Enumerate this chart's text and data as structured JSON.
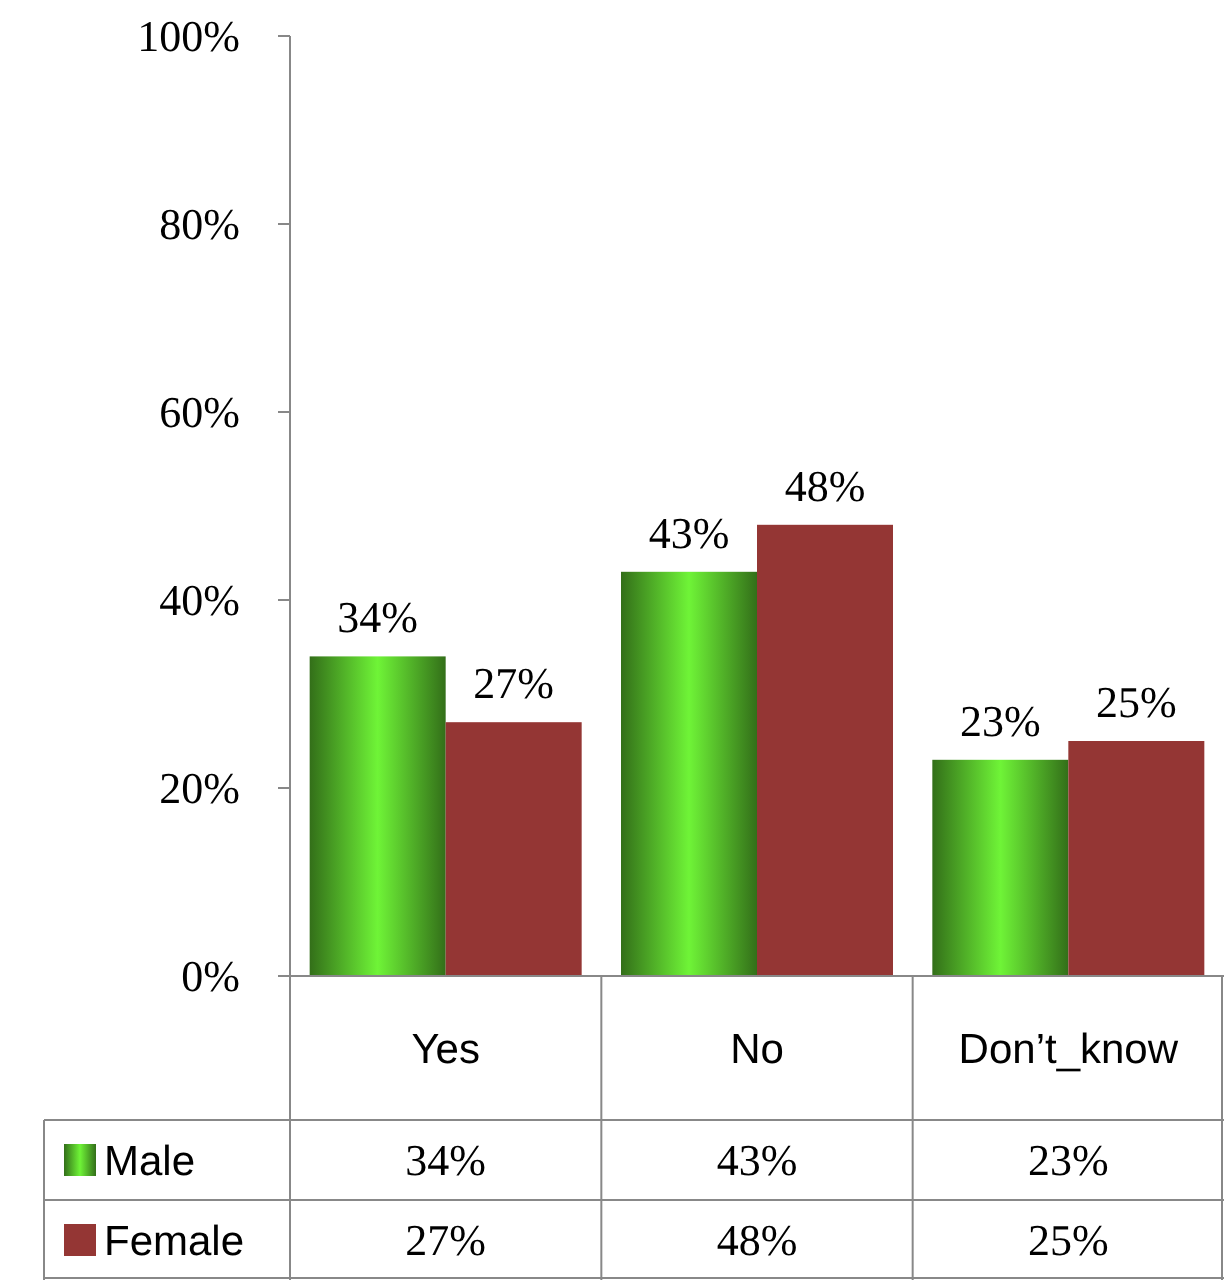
{
  "chart_data": {
    "type": "bar",
    "categories": [
      "Yes",
      "No",
      "Don’t_know"
    ],
    "series": [
      {
        "name": "Male",
        "color": "#3f8a1f",
        "values": [
          34,
          43,
          23
        ],
        "value_labels": [
          "34%",
          "43%",
          "23%"
        ]
      },
      {
        "name": "Female",
        "color": "#943634",
        "values": [
          27,
          48,
          25
        ],
        "value_labels": [
          "27%",
          "48%",
          "25%"
        ]
      }
    ],
    "ylim": [
      0,
      100
    ],
    "yticks": [
      {
        "value": 0,
        "label": "0%"
      },
      {
        "value": 20,
        "label": "20%"
      },
      {
        "value": 40,
        "label": "40%"
      },
      {
        "value": 60,
        "label": "60%"
      },
      {
        "value": 80,
        "label": "80%"
      },
      {
        "value": 100,
        "label": "100%"
      }
    ],
    "legend": "bottom",
    "grid": false
  }
}
